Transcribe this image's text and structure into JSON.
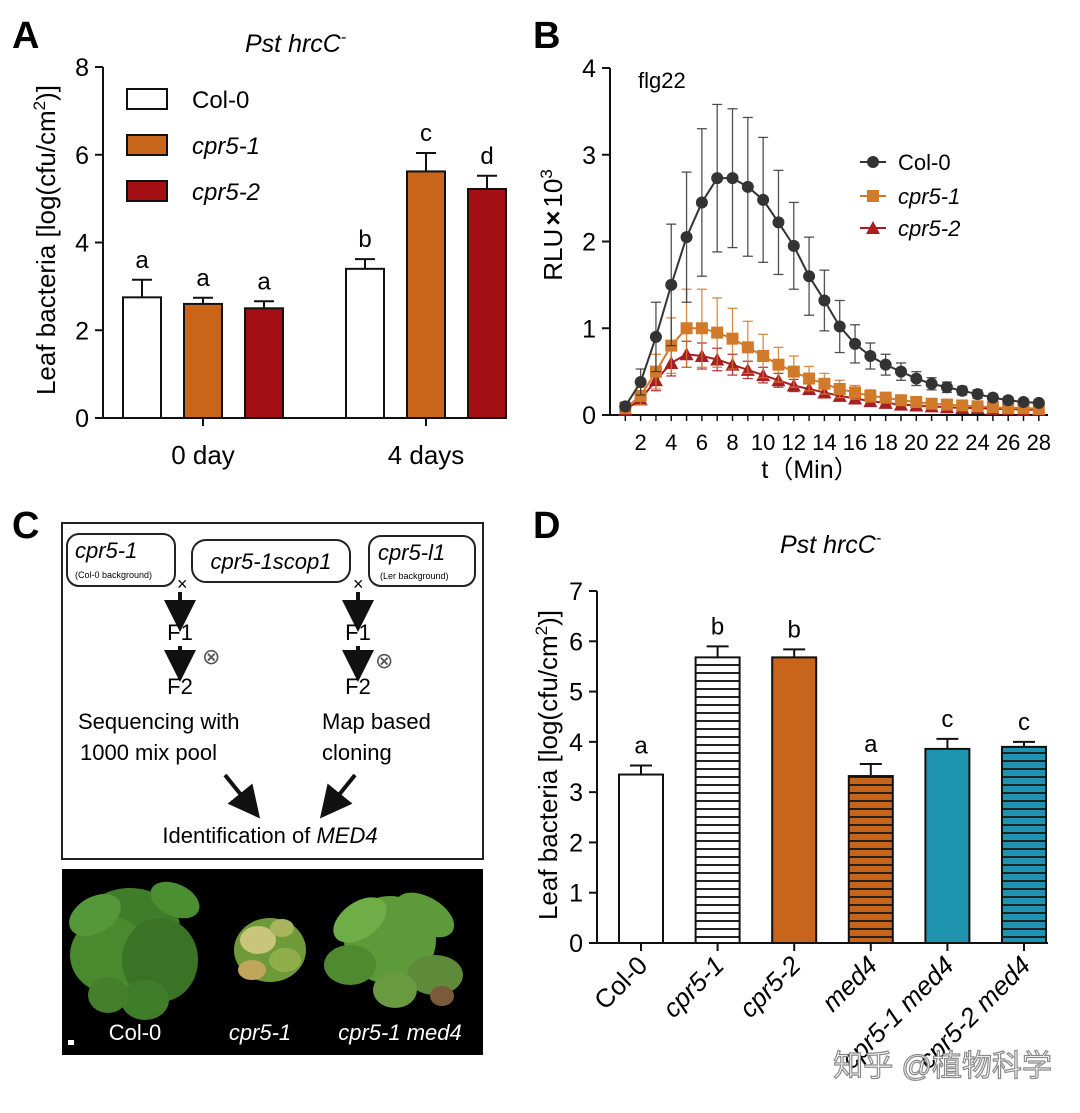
{
  "colors": {
    "col0": "#ffffff",
    "cpr51": "#c8651b",
    "cpr52": "#a40f14",
    "teal": "#1e94b0",
    "line_col0": "#333333",
    "line_cpr51": "#d07a2a",
    "line_cpr52": "#a81e22",
    "photo_bg": "#000000",
    "plant_green": "#3f7d2a"
  },
  "panels": {
    "a": "A",
    "b": "B",
    "c": "C",
    "d": "D"
  },
  "panel_c": {
    "box_cpr51": "cpr5-1",
    "box_cpr51_note": "(Col-0 background)",
    "box_scop": "cpr5-1scop1",
    "box_l1": "cpr5-l1",
    "box_l1_note": "(Ler background)",
    "cross_symbol": "×",
    "self_symbol": "⊗",
    "f1": "F1",
    "f2": "F2",
    "left_method_1": "Sequencing with",
    "left_method_2": "1000 mix pool",
    "right_method_1": "Map based",
    "right_method_2": "cloning",
    "identification_prefix": "Identification of ",
    "identification_gene": "MED4",
    "photo_labels": [
      "Col-0",
      "cpr5-1",
      "cpr5-1 med4"
    ]
  },
  "watermark": "知乎 @植物科学",
  "chart_data": [
    {
      "panel": "A",
      "type": "bar",
      "title": "Pst hrcC-",
      "title_main": "Pst hrcC",
      "title_sup": "-",
      "ylabel": "Leaf bacteria [log(cfu/cm²)]",
      "ylabel_main": "Leaf bacteria [log(cfu/cm",
      "ylabel_sup": "2",
      "ylabel_end": ")]",
      "ylim": [
        0,
        8
      ],
      "yticks": [
        "0",
        "2",
        "4",
        "6",
        "8"
      ],
      "categories": [
        "0 day",
        "4 days"
      ],
      "series": [
        {
          "name": "Col-0",
          "values": [
            2.75,
            3.4
          ],
          "errors": [
            0.4,
            0.22
          ],
          "letters": [
            "a",
            "b"
          ]
        },
        {
          "name": "cpr5-1",
          "values": [
            2.6,
            5.62
          ],
          "errors": [
            0.14,
            0.42
          ],
          "letters": [
            "a",
            "c"
          ]
        },
        {
          "name": "cpr5-2",
          "values": [
            2.5,
            5.22
          ],
          "errors": [
            0.16,
            0.3
          ],
          "letters": [
            "a",
            "d"
          ]
        }
      ]
    },
    {
      "panel": "B",
      "type": "line",
      "title": "flg22",
      "ylabel": "RLU×10³",
      "ylabel_main": "RLU",
      "ylabel_x": "×",
      "ylabel_10": "10",
      "ylabel_sup": "3",
      "xlabel": "t（Min）",
      "ylim": [
        0,
        4
      ],
      "yticks": [
        "0",
        "1",
        "2",
        "3",
        "4"
      ],
      "xlim": [
        0,
        28
      ],
      "xticks": [
        "2",
        "4",
        "6",
        "8",
        "10",
        "12",
        "14",
        "16",
        "18",
        "20",
        "22",
        "24",
        "26",
        "28"
      ],
      "x": [
        1,
        2,
        3,
        4,
        5,
        6,
        7,
        8,
        9,
        10,
        11,
        12,
        13,
        14,
        15,
        16,
        17,
        18,
        19,
        20,
        21,
        22,
        23,
        24,
        25,
        26,
        27,
        28
      ],
      "series": [
        {
          "name": "Col-0",
          "marker": "circle",
          "values": [
            0.1,
            0.38,
            0.9,
            1.5,
            2.05,
            2.45,
            2.73,
            2.73,
            2.63,
            2.48,
            2.22,
            1.95,
            1.6,
            1.32,
            1.02,
            0.82,
            0.68,
            0.58,
            0.5,
            0.42,
            0.36,
            0.32,
            0.28,
            0.24,
            0.2,
            0.17,
            0.15,
            0.14
          ],
          "errors": [
            0.05,
            0.15,
            0.4,
            0.7,
            0.75,
            0.85,
            0.85,
            0.8,
            0.8,
            0.72,
            0.6,
            0.5,
            0.45,
            0.35,
            0.3,
            0.22,
            0.15,
            0.12,
            0.1,
            0.08,
            0.07,
            0.06,
            0.05,
            0.05,
            0.04,
            0.04,
            0.03,
            0.03
          ]
        },
        {
          "name": "cpr5-1",
          "marker": "square",
          "values": [
            0.08,
            0.22,
            0.5,
            0.8,
            1.0,
            1.0,
            0.95,
            0.88,
            0.78,
            0.68,
            0.58,
            0.5,
            0.42,
            0.36,
            0.3,
            0.26,
            0.22,
            0.2,
            0.17,
            0.15,
            0.13,
            0.12,
            0.11,
            0.1,
            0.09,
            0.08,
            0.08,
            0.07
          ],
          "errors": [
            0.04,
            0.1,
            0.2,
            0.32,
            0.45,
            0.45,
            0.4,
            0.35,
            0.3,
            0.25,
            0.2,
            0.18,
            0.14,
            0.12,
            0.1,
            0.08,
            0.07,
            0.06,
            0.05,
            0.05,
            0.04,
            0.04,
            0.03,
            0.03,
            0.03,
            0.03,
            0.02,
            0.02
          ]
        },
        {
          "name": "cpr5-2",
          "marker": "triangle",
          "values": [
            0.06,
            0.18,
            0.4,
            0.6,
            0.7,
            0.68,
            0.64,
            0.58,
            0.52,
            0.46,
            0.4,
            0.34,
            0.3,
            0.26,
            0.22,
            0.19,
            0.16,
            0.14,
            0.12,
            0.11,
            0.1,
            0.09,
            0.08,
            0.08,
            0.07,
            0.07,
            0.06,
            0.06
          ],
          "errors": [
            0.03,
            0.06,
            0.12,
            0.15,
            0.15,
            0.15,
            0.13,
            0.12,
            0.1,
            0.09,
            0.08,
            0.07,
            0.06,
            0.05,
            0.05,
            0.04,
            0.04,
            0.03,
            0.03,
            0.03,
            0.03,
            0.02,
            0.02,
            0.02,
            0.02,
            0.02,
            0.02,
            0.02
          ]
        }
      ]
    },
    {
      "panel": "D",
      "type": "bar",
      "title": "Pst hrcC-",
      "title_main": "Pst hrcC",
      "title_sup": "-",
      "ylabel": "Leaf bacteria [log(cfu/cm²)]",
      "ylabel_main": "Leaf bacteria [log(cfu/cm",
      "ylabel_sup": "2",
      "ylabel_end": ")]",
      "ylim": [
        0,
        7
      ],
      "yticks": [
        "0",
        "1",
        "2",
        "3",
        "4",
        "5",
        "6",
        "7"
      ],
      "categories": [
        "Col-0",
        "cpr5-1",
        "cpr5-2",
        "med4",
        "cpr5-1 med4",
        "cpr5-2 med4"
      ],
      "values": [
        3.35,
        5.68,
        5.68,
        3.32,
        3.86,
        3.9
      ],
      "errors": [
        0.18,
        0.22,
        0.16,
        0.24,
        0.2,
        0.1
      ],
      "letters": [
        "a",
        "b",
        "b",
        "a",
        "c",
        "c"
      ],
      "fills": [
        "white",
        "hstripe-white",
        "orange",
        "hstripe-orange",
        "teal",
        "hstripe-teal"
      ]
    }
  ]
}
